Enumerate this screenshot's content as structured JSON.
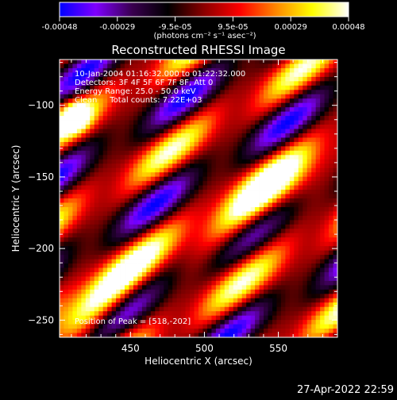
{
  "colorbar": {
    "ticks": [
      "-0.00048",
      "-0.00029",
      "-9.5e-05",
      "9.5e-05",
      "0.00029",
      "0.00048"
    ],
    "unit_label": "(photons cm⁻² s⁻¹ asec⁻²)",
    "colormap": [
      "#0000ff",
      "#7f00ff",
      "#3a0050",
      "#000000",
      "#8b0000",
      "#ff0000",
      "#ff8800",
      "#ffff00",
      "#ffffff"
    ]
  },
  "chart_data": {
    "type": "heatmap",
    "title": "Reconstructed RHESSI Image",
    "xlabel": "Heliocentric X (arcsec)",
    "ylabel": "Heliocentric Y (arcsec)",
    "xlim": [
      402,
      590
    ],
    "ylim": [
      -262,
      -68
    ],
    "x_ticks": [
      450,
      500,
      550
    ],
    "y_ticks": [
      -100,
      -150,
      -200,
      -250
    ],
    "value_range": [
      -0.00048,
      0.00048
    ],
    "peak": [
      518,
      -202
    ],
    "annotations": [
      "10-Jan-2004 01:16:32.000 to 01:22:32.000",
      "Detectors: 3F 4F 5F 6F 7F 8F, Att 0",
      "Energy Range: 25.0 - 50.0 keV",
      "Clean     Total counts: 7.22E+03",
      "Position of Peak = [518,-202]"
    ]
  },
  "footer_timestamp": "27-Apr-2022 22:59"
}
